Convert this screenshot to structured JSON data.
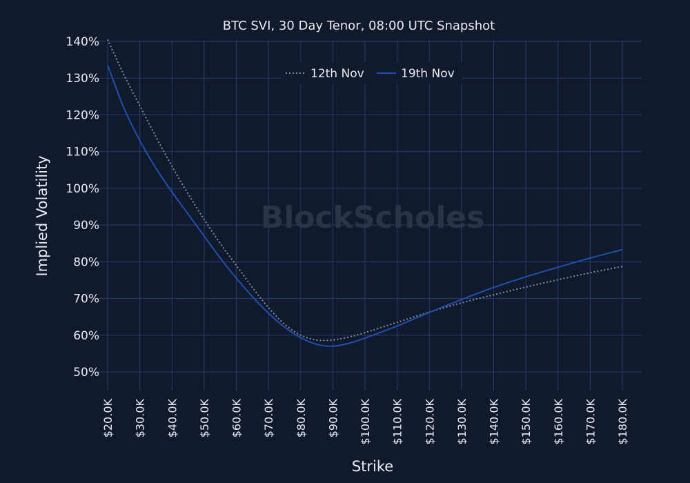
{
  "chart_data": {
    "type": "line",
    "title": "BTC SVI, 30 Day Tenor, 08:00 UTC Snapshot",
    "xlabel": "Strike",
    "ylabel": "Implied Volatility",
    "watermark": "BlockScholes",
    "xlim": [
      20000,
      180000
    ],
    "ylim": [
      45,
      140
    ],
    "x_tick_values": [
      20000,
      30000,
      40000,
      50000,
      60000,
      70000,
      80000,
      90000,
      100000,
      110000,
      120000,
      130000,
      140000,
      150000,
      160000,
      170000,
      180000
    ],
    "x_tick_labels": [
      "$20.0K",
      "$30.0K",
      "$40.0K",
      "$50.0K",
      "$60.0K",
      "$70.0K",
      "$80.0K",
      "$90.0K",
      "$100.0K",
      "$110.0K",
      "$120.0K",
      "$130.0K",
      "$140.0K",
      "$150.0K",
      "$160.0K",
      "$170.0K",
      "$180.0K"
    ],
    "y_tick_values": [
      50,
      60,
      70,
      80,
      90,
      100,
      110,
      120,
      130,
      140
    ],
    "y_tick_labels": [
      "50%",
      "60%",
      "70%",
      "80%",
      "90%",
      "100%",
      "110%",
      "120%",
      "130%",
      "140%"
    ],
    "grid": true,
    "legend_position": "top-center",
    "series": [
      {
        "name": "12th Nov",
        "color": "#8a8f99",
        "style": "dotted",
        "x": [
          20000,
          25000,
          30000,
          35000,
          40000,
          45000,
          50000,
          55000,
          60000,
          65000,
          70000,
          75000,
          80000,
          85000,
          90000,
          95000,
          100000,
          110000,
          120000,
          130000,
          140000,
          150000,
          160000,
          170000,
          180000
        ],
        "y": [
          140.5,
          131,
          122.5,
          114,
          106,
          98.5,
          91.5,
          85,
          79,
          73,
          67.5,
          63,
          60,
          58.7,
          58.7,
          59.5,
          60.7,
          63.5,
          66.3,
          68.8,
          71,
          73.1,
          75.1,
          77,
          78.7
        ]
      },
      {
        "name": "19th Nov",
        "color": "#1f4fb0",
        "style": "solid",
        "x": [
          20000,
          25000,
          30000,
          35000,
          40000,
          45000,
          50000,
          55000,
          60000,
          65000,
          70000,
          75000,
          80000,
          85000,
          90000,
          95000,
          100000,
          110000,
          120000,
          130000,
          140000,
          150000,
          160000,
          170000,
          180000
        ],
        "y": [
          133.5,
          122,
          113,
          105.5,
          99,
          93,
          87,
          81,
          75.5,
          70.5,
          66,
          62.2,
          59.3,
          57.5,
          57,
          57.8,
          59.2,
          62.5,
          66.2,
          69.7,
          73,
          75.9,
          78.5,
          81,
          83.3
        ]
      }
    ]
  }
}
